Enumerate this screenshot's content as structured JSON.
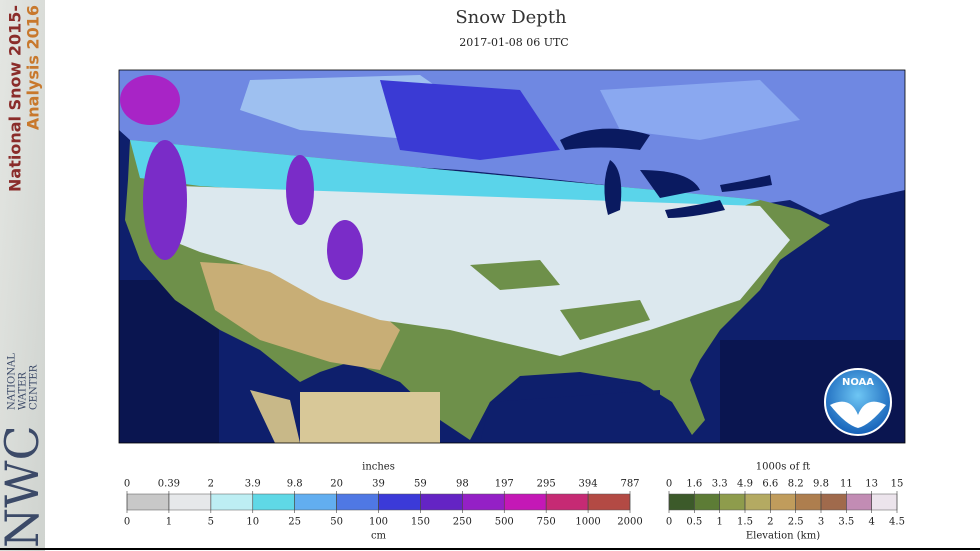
{
  "header": {
    "title": "Snow Depth",
    "subtitle": "2017-01-08 06 UTC"
  },
  "sidebar": {
    "line1": "National Snow 2015-",
    "line2": "Analysis 2016",
    "logo": "NWC",
    "org_lines": [
      "NATIONAL",
      "WATER",
      "CENTER"
    ]
  },
  "map": {
    "logo_text": "NOAA"
  },
  "legend": {
    "snow": {
      "unit_top": "inches",
      "labels_top": [
        "0",
        "0.39",
        "2",
        "3.9",
        "9.8",
        "20",
        "39",
        "59",
        "98",
        "197",
        "295",
        "394",
        "787"
      ],
      "labels_bottom": [
        "0",
        "1",
        "5",
        "10",
        "25",
        "50",
        "100",
        "150",
        "250",
        "500",
        "750",
        "1000",
        "2000"
      ],
      "unit_bottom": "cm",
      "colors": [
        "#c8c8c8",
        "#e6e8ea",
        "#bdeef3",
        "#5fd8e6",
        "#62aef0",
        "#4f78e4",
        "#3b3ad8",
        "#6424c4",
        "#9420c6",
        "#c418b6",
        "#c62a74",
        "#b34a44"
      ]
    },
    "elevation": {
      "unit_top": "1000s of ft",
      "labels_top": [
        "0",
        "1.6",
        "3.3",
        "4.9",
        "6.6",
        "8.2",
        "9.8",
        "11",
        "13",
        "15"
      ],
      "labels_bottom": [
        "0",
        "0.5",
        "1",
        "1.5",
        "2",
        "2.5",
        "3",
        "3.5",
        "4",
        "4.5"
      ],
      "unit_bottom": "Elevation (km)",
      "colors": [
        "#3c5a2a",
        "#5d7c36",
        "#8e9c4c",
        "#b4aa62",
        "#c09c5c",
        "#ae7e4e",
        "#a06a4c",
        "#c28cb4",
        "#ece4ec"
      ]
    }
  }
}
